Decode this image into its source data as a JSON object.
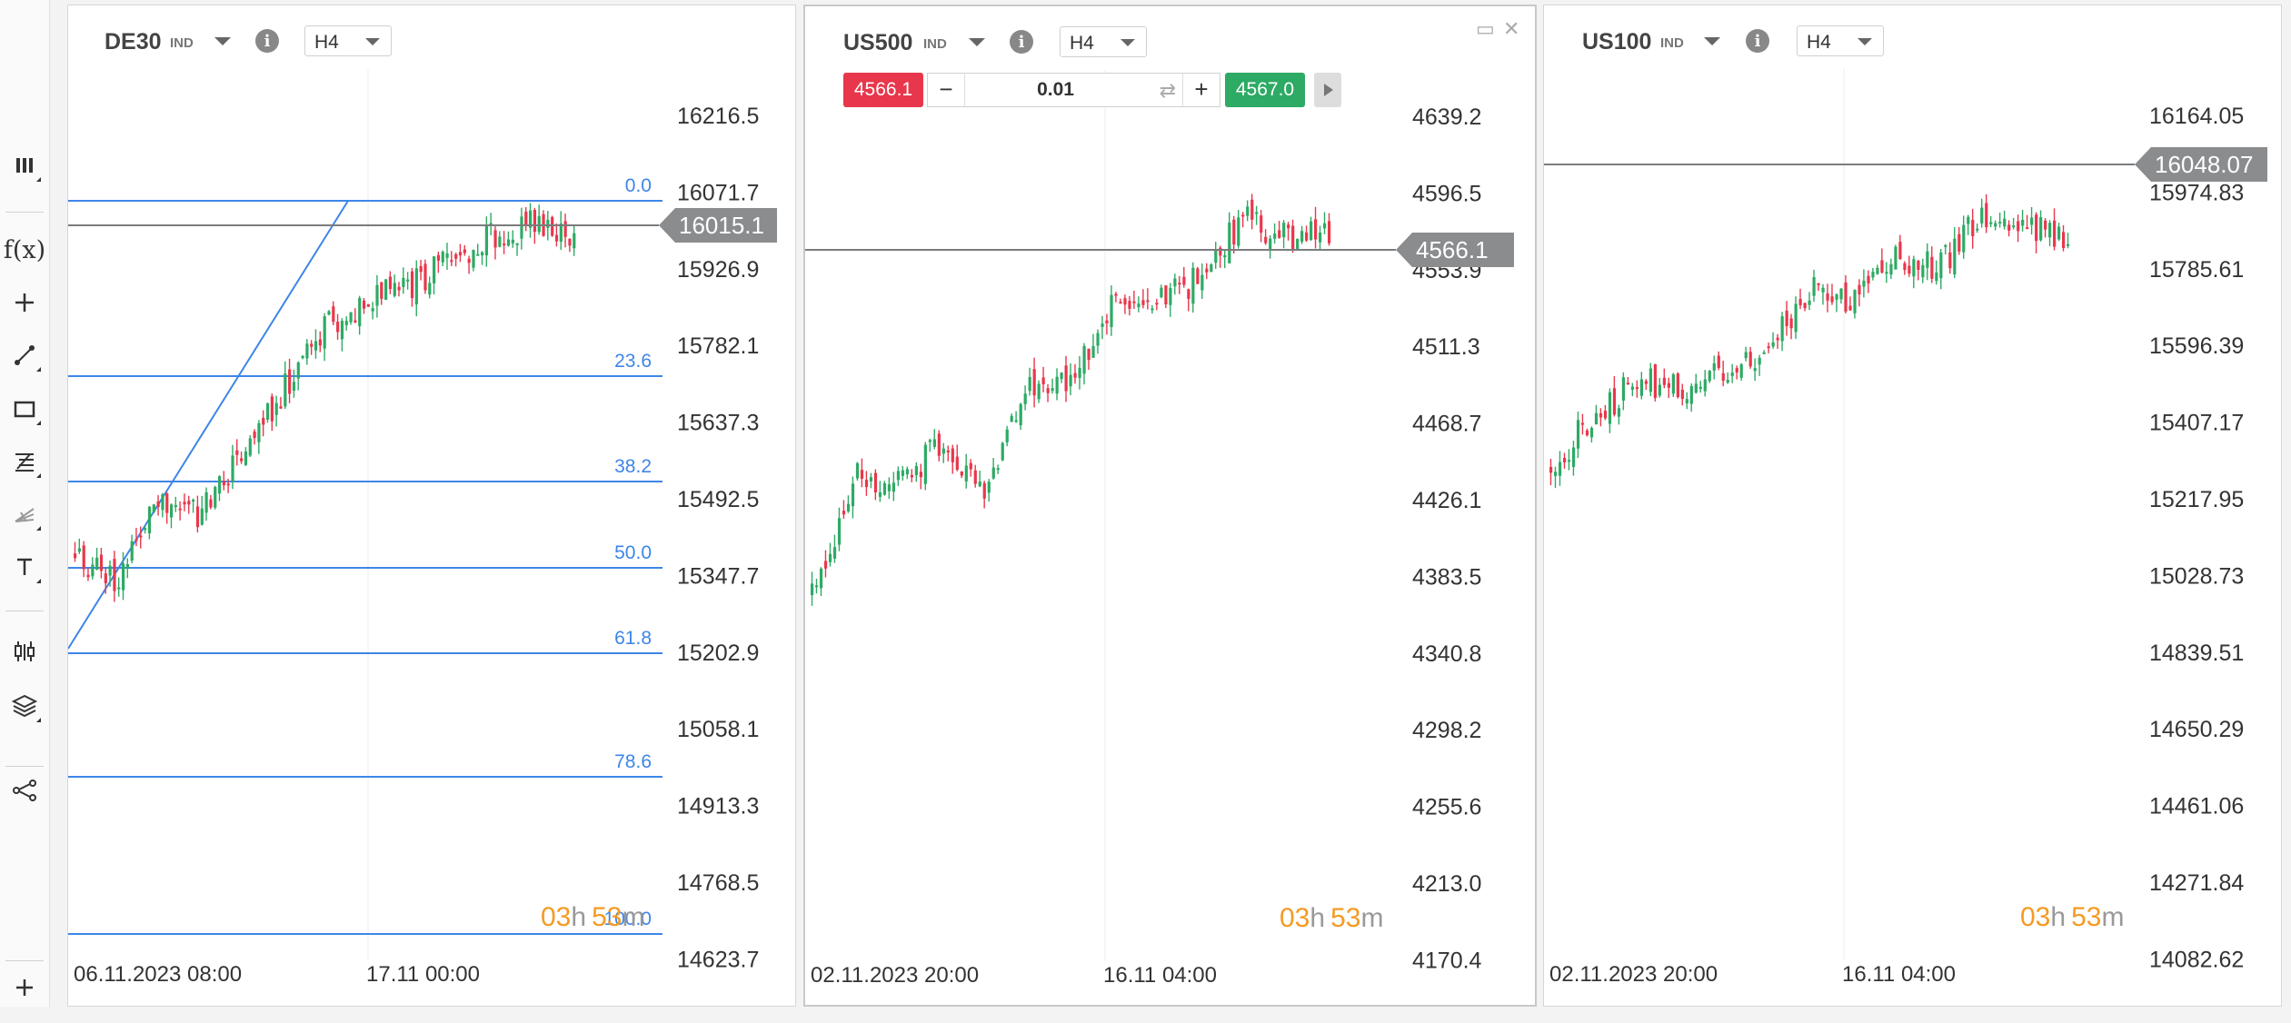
{
  "toolbar": {
    "tools": [
      {
        "name": "chart-type-icon"
      },
      {
        "name": "indicators-icon",
        "label": "f(x)"
      },
      {
        "name": "crosshair-icon"
      },
      {
        "name": "trendline-icon"
      },
      {
        "name": "rectangle-icon"
      },
      {
        "name": "fibonacci-icon"
      },
      {
        "name": "pitchfork-icon"
      },
      {
        "name": "text-tool-icon"
      },
      {
        "name": "candles-icon"
      },
      {
        "name": "layers-icon"
      },
      {
        "name": "share-icon"
      },
      {
        "name": "add-chart-icon"
      }
    ]
  },
  "colors": {
    "up": "#2daa64",
    "down": "#e8374c",
    "fib": "#3d86e8",
    "price_tag": "#8a8c8e",
    "timer": "#f59a23"
  },
  "charts": [
    {
      "symbol": "DE30",
      "type_label": "IND",
      "timeframe": "H4",
      "price_tag": "16015.1",
      "y_labels": [
        "16216.5",
        "16071.7",
        "15926.9",
        "15782.1",
        "15637.3",
        "15492.5",
        "15347.7",
        "15202.9",
        "15058.1",
        "14913.3",
        "14768.5",
        "14623.7"
      ],
      "x_labels": [
        "06.11.2023 08:00",
        "17.11 00:00"
      ],
      "timer": {
        "h": "03",
        "h_unit": "h",
        "m": "53",
        "m_unit": "m"
      },
      "fib_levels": [
        "0.0",
        "23.6",
        "38.2",
        "50.0",
        "61.8",
        "78.6",
        "100.0"
      ],
      "seed": 11,
      "start_level": 0.28,
      "path": [
        0.28,
        0.22,
        0.4,
        0.35,
        0.48,
        0.6,
        0.72,
        0.78,
        0.8,
        0.86,
        0.9,
        0.93,
        0.9
      ]
    },
    {
      "symbol": "US500",
      "type_label": "IND",
      "timeframe": "H4",
      "price_tag": "4566.1",
      "trade": {
        "sell": "4566.1",
        "buy": "4567.0",
        "qty": "0.01",
        "minus": "−",
        "plus": "+"
      },
      "y_labels": [
        "4639.2",
        "4596.5",
        "4553.9",
        "4511.3",
        "4468.7",
        "4426.1",
        "4383.5",
        "4340.8",
        "4298.2",
        "4255.6",
        "4213.0",
        "4170.4"
      ],
      "x_labels": [
        "02.11.2023 20:00",
        "16.11 04:00"
      ],
      "timer": {
        "h": "03",
        "h_unit": "h",
        "m": "53",
        "m_unit": "m"
      },
      "seed": 23,
      "path": [
        0.2,
        0.43,
        0.42,
        0.5,
        0.4,
        0.6,
        0.62,
        0.78,
        0.78,
        0.82,
        0.94,
        0.9,
        0.92
      ]
    },
    {
      "symbol": "US100",
      "type_label": "IND",
      "timeframe": "H4",
      "price_tag": "16048.07",
      "y_labels": [
        "16164.05",
        "15974.83",
        "15785.61",
        "15596.39",
        "15407.17",
        "15217.95",
        "15028.73",
        "14839.51",
        "14650.29",
        "14461.06",
        "14271.84",
        "14082.62"
      ],
      "x_labels": [
        "02.11.2023 20:00",
        "16.11 04:00"
      ],
      "timer": {
        "h": "03",
        "h_unit": "h",
        "m": "53",
        "m_unit": "m"
      },
      "seed": 37,
      "path": [
        0.45,
        0.55,
        0.62,
        0.6,
        0.64,
        0.68,
        0.8,
        0.78,
        0.86,
        0.84,
        0.95,
        0.92,
        0.9
      ]
    }
  ]
}
